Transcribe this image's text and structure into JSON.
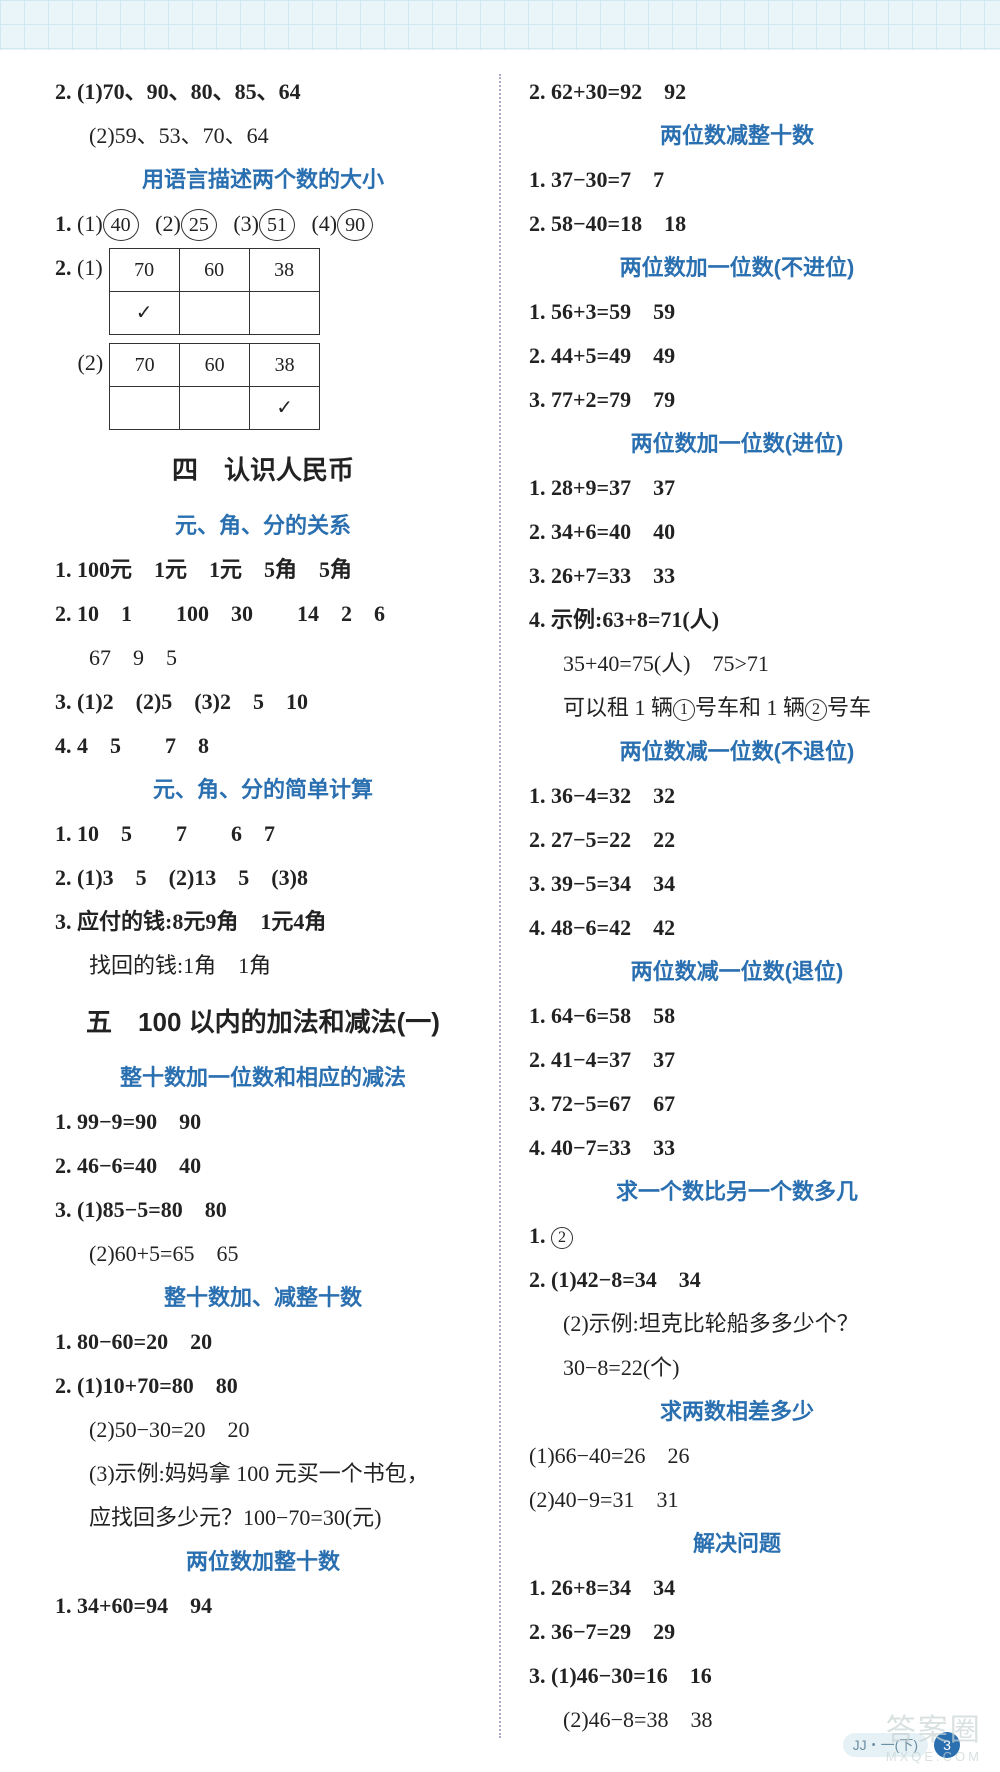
{
  "left": {
    "q2_1": "2. (1)70、90、80、85、64",
    "q2_2": "(2)59、53、70、64",
    "heading1": "用语言描述两个数的大小",
    "circ_row_prefix": "1.",
    "circ_labels": [
      "(1)",
      "(2)",
      "(3)",
      "(4)"
    ],
    "circ_values": [
      "40",
      "25",
      "51",
      "90"
    ],
    "t_prefix": "2.",
    "t1_label": "(1)",
    "t2_label": "(2)",
    "t_headers": [
      "70",
      "60",
      "38"
    ],
    "check": "✓",
    "chapter4": "四　认识人民币",
    "heading2": "元、角、分的关系",
    "s2_1": "1. 100元　1元　1元　5角　5角",
    "s2_2": "2. 10　1　　100　30　　14　2　6",
    "s2_2b": "67　9　5",
    "s2_3": "3. (1)2　(2)5　(3)2　5　10",
    "s2_4": "4. 4　5　　7　8",
    "heading3": "元、角、分的简单计算",
    "s3_1": "1. 10　5　　7　　6　7",
    "s3_2": "2. (1)3　5　(2)13　5　(3)8",
    "s3_3a": "3. 应付的钱:8元9角　1元4角",
    "s3_3b": "找回的钱:1角　1角",
    "chapter5": "五　100 以内的加法和减法(一)",
    "heading4": "整十数加一位数和相应的减法",
    "s4_1": "1. 99−9=90　90",
    "s4_2": "2. 46−6=40　40",
    "s4_3a": "3. (1)85−5=80　80",
    "s4_3b": "(2)60+5=65　65",
    "heading5": "整十数加、减整十数",
    "s5_1": "1. 80−60=20　20",
    "s5_2a": "2. (1)10+70=80　80",
    "s5_2b": "(2)50−30=20　20",
    "s5_2c": "(3)示例:妈妈拿 100 元买一个书包，",
    "s5_2d": "应找回多少元？100−70=30(元)",
    "heading6": "两位数加整十数",
    "s6_1": "1. 34+60=94　94"
  },
  "right": {
    "s6_2": "2. 62+30=92　92",
    "heading7": "两位数减整十数",
    "s7_1": "1. 37−30=7　7",
    "s7_2": "2. 58−40=18　18",
    "heading8": "两位数加一位数(不进位)",
    "s8_1": "1. 56+3=59　59",
    "s8_2": "2. 44+5=49　49",
    "s8_3": "3. 77+2=79　79",
    "heading9": "两位数加一位数(进位)",
    "s9_1": "1. 28+9=37　37",
    "s9_2": "2. 34+6=40　40",
    "s9_3": "3. 26+7=33　33",
    "s9_4a": "4. 示例:63+8=71(人)",
    "s9_4b": "35+40=75(人)　75>71",
    "s9_4c_pre": "可以租 1 辆",
    "s9_4c_mid": "号车和 1 辆",
    "s9_4c_end": "号车",
    "heading10": "两位数减一位数(不退位)",
    "s10_1": "1. 36−4=32　32",
    "s10_2": "2. 27−5=22　22",
    "s10_3": "3. 39−5=34　34",
    "s10_4": "4. 48−6=42　42",
    "heading11": "两位数减一位数(退位)",
    "s11_1": "1. 64−6=58　58",
    "s11_2": "2. 41−4=37　37",
    "s11_3": "3. 72−5=67　67",
    "s11_4": "4. 40−7=33　33",
    "heading12": "求一个数比另一个数多几",
    "s12_1_pre": "1. ",
    "s12_2a": "2. (1)42−8=34　34",
    "s12_2b": "(2)示例:坦克比轮船多多少个？",
    "s12_2c": "30−8=22(个)",
    "heading13": "求两数相差多少",
    "s13_1": "(1)66−40=26　26",
    "s13_2": "(2)40−9=31　31",
    "heading14": "解决问题",
    "s14_1": "1. 26+8=34　34",
    "s14_2": "2. 36−7=29　29",
    "s14_3a": "3. (1)46−30=16　16",
    "s14_3b": "(2)46−8=38　38"
  },
  "circled_small": {
    "one": "1",
    "two": "2"
  },
  "footer": {
    "tag": "JJ・一(下)",
    "page": "3"
  },
  "watermark": {
    "main": "答案圈",
    "sub": "MXQE.COM"
  },
  "style": {
    "blue": "#2a6fb0",
    "title_fontsize": 22,
    "chapter_fontsize": 26,
    "body_fontsize": 22
  }
}
